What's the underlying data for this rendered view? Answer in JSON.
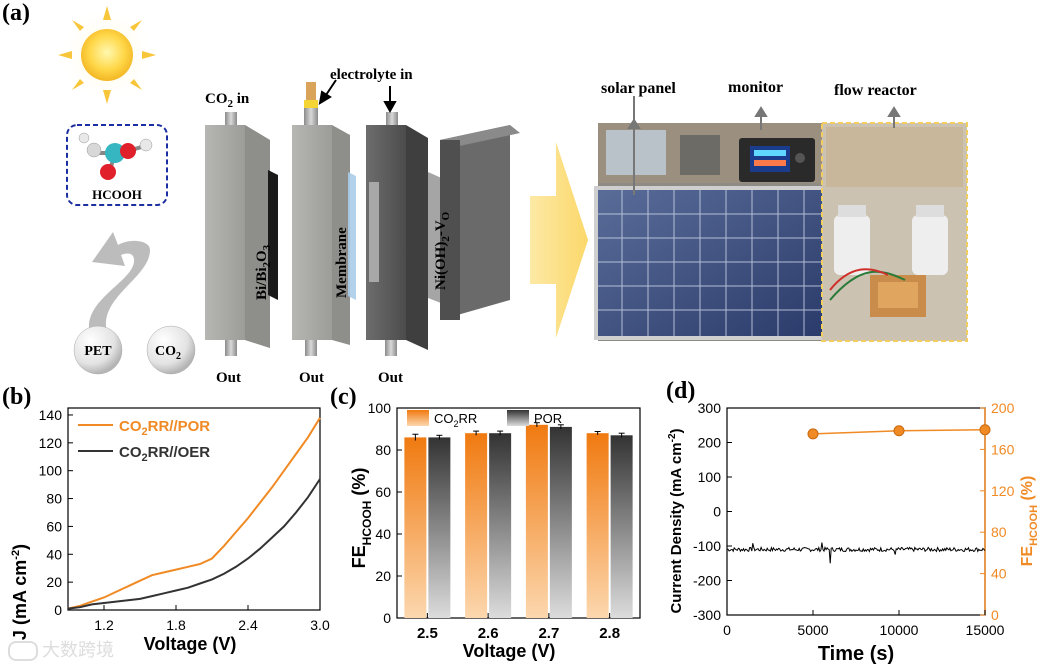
{
  "panel_labels": {
    "a": "(a)",
    "b": "(b)",
    "c": "(c)",
    "d": "(d)"
  },
  "schematic": {
    "molecule_label": "HCOOH",
    "feed_left": "PET",
    "feed_right": "CO",
    "feed_right_sub": "2",
    "co2_in": "CO",
    "co2_in_sub": "2",
    "co2_in_suffix": " in",
    "electrolyte_in": "electrolyte in",
    "bi_label": "Bi/Bi",
    "bi_sub": "2",
    "bi_o": "O",
    "bi_sub2": "3",
    "membrane_label": "Membrane",
    "ni_label": "Ni(OH)",
    "ni_sub": "2",
    "ni_suffix": "-V",
    "ni_sub2": "O",
    "out_labels": [
      "Out",
      "Out",
      "Out"
    ],
    "photo_labels": [
      "solar panel",
      "monitor",
      "flow reactor"
    ]
  },
  "watermark": "大数跨境",
  "colors": {
    "orange": "#F08A24",
    "dark": "#333333",
    "gray": "#9a9a9a"
  },
  "chart_data": [
    {
      "type": "line",
      "panel": "b",
      "xlabel": "Voltage (V)",
      "ylabel": "J (mA cm",
      "ylabel_sup": "-2",
      "ylabel_end": ")",
      "xlim": [
        0.9,
        3.0
      ],
      "ylim": [
        0,
        145
      ],
      "xticks": [
        "1.2",
        "1.8",
        "2.4",
        "3.0"
      ],
      "xtick_values": [
        1.2,
        1.8,
        2.4,
        3.0
      ],
      "yticks": [
        "0",
        "20",
        "40",
        "60",
        "80",
        "100",
        "120",
        "140"
      ],
      "ytick_values": [
        0,
        20,
        40,
        60,
        80,
        100,
        120,
        140
      ],
      "series": [
        {
          "name": "CO2RR//POR",
          "label_main": "CO",
          "label_sub": "2",
          "label_rest": "RR//POR",
          "color": "#F08A24",
          "x": [
            0.9,
            1.0,
            1.1,
            1.2,
            1.3,
            1.4,
            1.5,
            1.6,
            1.7,
            1.8,
            1.9,
            2.0,
            2.1,
            2.2,
            2.3,
            2.4,
            2.5,
            2.6,
            2.7,
            2.8,
            2.9,
            3.0
          ],
          "y": [
            1,
            3,
            6,
            9,
            13,
            17,
            21,
            25,
            27,
            29,
            31,
            33,
            37,
            46,
            56,
            66,
            77,
            88,
            100,
            112,
            124,
            138
          ]
        },
        {
          "name": "CO2RR//OER",
          "label_main": "CO",
          "label_sub": "2",
          "label_rest": "RR//OER",
          "color": "#333333",
          "x": [
            0.9,
            1.0,
            1.1,
            1.2,
            1.3,
            1.4,
            1.5,
            1.6,
            1.7,
            1.8,
            1.9,
            2.0,
            2.1,
            2.2,
            2.3,
            2.4,
            2.5,
            2.6,
            2.7,
            2.8,
            2.9,
            3.0
          ],
          "y": [
            1,
            2,
            4,
            5,
            6,
            7,
            8,
            10,
            12,
            14,
            16,
            19,
            22,
            26,
            31,
            37,
            44,
            52,
            60,
            70,
            81,
            94
          ]
        }
      ]
    },
    {
      "type": "bar",
      "panel": "c",
      "xlabel": "Voltage (V)",
      "ylabel": "FE",
      "ylabel_sub": "HCOOH",
      "ylabel_end": " (%)",
      "categories": [
        "2.5",
        "2.6",
        "2.7",
        "2.8"
      ],
      "ylim": [
        0,
        100
      ],
      "yticks": [
        "0",
        "20",
        "40",
        "60",
        "80",
        "100"
      ],
      "ytick_values": [
        0,
        20,
        40,
        60,
        80,
        100
      ],
      "legend": [
        {
          "main": "CO",
          "sub": "2",
          "rest": "RR"
        },
        {
          "main": "POR",
          "sub": "",
          "rest": ""
        }
      ],
      "series": [
        {
          "name": "CO2RR",
          "values": [
            86,
            88,
            92,
            88
          ],
          "errors": [
            1.5,
            1.0,
            1.0,
            0.8
          ]
        },
        {
          "name": "POR",
          "values": [
            86,
            88,
            91,
            87
          ],
          "errors": [
            1.0,
            1.0,
            1.0,
            1.0
          ]
        }
      ]
    },
    {
      "type": "line",
      "panel": "d",
      "xlabel": "Time (s)",
      "ylabel_left": "Current Density (mA cm",
      "ylabel_left_sup": "-2",
      "ylabel_left_end": ")",
      "ylabel_right": "FE",
      "ylabel_right_sub": "HCOOH",
      "ylabel_right_end": " (%)",
      "xlim": [
        0,
        15000
      ],
      "xticks": [
        "0",
        "5000",
        "10000",
        "15000"
      ],
      "xtick_values": [
        0,
        5000,
        10000,
        15000
      ],
      "ylim_left": [
        -300,
        300
      ],
      "yticks_left": [
        "-300",
        "-200",
        "-100",
        "0",
        "100",
        "200",
        "300"
      ],
      "ytick_left_values": [
        -300,
        -200,
        -100,
        0,
        100,
        200,
        300
      ],
      "ylim_right": [
        0,
        200
      ],
      "yticks_right": [
        "0",
        "40",
        "80",
        "120",
        "160",
        "200"
      ],
      "ytick_right_values": [
        0,
        40,
        80,
        120,
        160,
        200
      ],
      "current_series": {
        "name": "Current density",
        "mean": -110,
        "noise": 6,
        "spikes": [
          {
            "x": 1500,
            "y": -92
          },
          {
            "x": 5500,
            "y": -90
          },
          {
            "x": 6000,
            "y": -150
          },
          {
            "x": 9800,
            "y": -125
          }
        ]
      },
      "fe_series": {
        "name": "FE HCOOH",
        "x": [
          5000,
          10000,
          15000
        ],
        "y": [
          175,
          178,
          179
        ]
      }
    }
  ]
}
